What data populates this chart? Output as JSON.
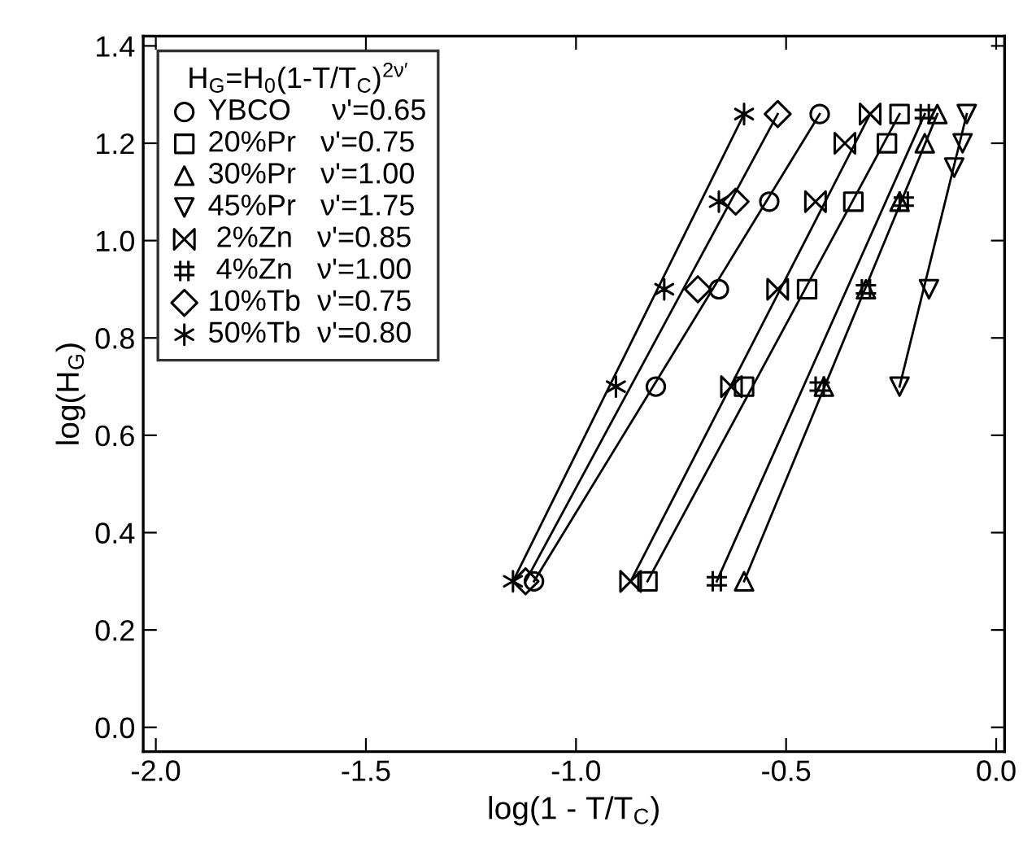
{
  "chart_data": {
    "type": "scatter",
    "xlabel": "log(1 - T/T$_{C}$)",
    "ylabel": "log(H$_{G}$)",
    "legend_title": "H$_{G}$=H$_{0}$(1-T/T$_{C}$)$^{2ν′}$",
    "xlim": [
      -2.03,
      0.02
    ],
    "ylim": [
      -0.05,
      1.42
    ],
    "xticks": [
      {
        "value": -2.0,
        "label": "-2.0"
      },
      {
        "value": -1.5,
        "label": "-1.5"
      },
      {
        "value": -1.0,
        "label": "-1.0"
      },
      {
        "value": -0.5,
        "label": "-0.5"
      },
      {
        "value": 0.0,
        "label": "0.0"
      }
    ],
    "yticks": [
      {
        "value": 0.0,
        "label": "0.0"
      },
      {
        "value": 0.2,
        "label": "0.2"
      },
      {
        "value": 0.4,
        "label": "0.4"
      },
      {
        "value": 0.6,
        "label": "0.6"
      },
      {
        "value": 0.8,
        "label": "0.8"
      },
      {
        "value": 1.0,
        "label": "1.0"
      },
      {
        "value": 1.2,
        "label": "1.2"
      },
      {
        "value": 1.4,
        "label": "1.4"
      }
    ],
    "grid": false,
    "legend": "top left",
    "series": [
      {
        "name": "YBCO     ν'=0.65",
        "color": "#000000",
        "marker": "circle",
        "x": [
          -1.1,
          -0.81,
          -0.66,
          -0.54,
          -0.42
        ],
        "values": [
          0.3,
          0.7,
          0.9,
          1.08,
          1.26
        ]
      },
      {
        "name": "20%Pr   ν'=0.75",
        "color": "#000000",
        "marker": "square",
        "x": [
          -0.83,
          -0.6,
          -0.45,
          -0.34,
          -0.26,
          -0.23
        ],
        "values": [
          0.3,
          0.7,
          0.9,
          1.08,
          1.2,
          1.26
        ]
      },
      {
        "name": "30%Pr   ν'=1.00",
        "color": "#000000",
        "marker": "triangle",
        "x": [
          -0.6,
          -0.41,
          -0.31,
          -0.23,
          -0.17,
          -0.14
        ],
        "values": [
          0.3,
          0.7,
          0.9,
          1.08,
          1.2,
          1.26
        ]
      },
      {
        "name": "45%Pr   ν'=1.75",
        "color": "#000000",
        "marker": "triangle_down",
        "x": [
          -0.23,
          -0.16,
          -0.1,
          -0.08,
          -0.07
        ],
        "values": [
          0.7,
          0.9,
          1.15,
          1.2,
          1.26
        ]
      },
      {
        "name": " 2%Zn   ν'=0.85",
        "color": "#000000",
        "x": [
          -0.87,
          -0.63,
          -0.52,
          -0.43,
          -0.36,
          -0.3
        ],
        "values": [
          0.3,
          0.7,
          0.9,
          1.08,
          1.2,
          1.26
        ]
      },
      {
        "name": " 4%Zn   ν'=1.00",
        "color": "#000000",
        "x": [
          -0.665,
          -0.42,
          -0.31,
          -0.22,
          -0.17
        ],
        "values": [
          0.3,
          0.7,
          0.9,
          1.08,
          1.26
        ]
      },
      {
        "name": "10%Tb  ν'=0.75",
        "color": "#000000",
        "marker": "diamond",
        "x": [
          -1.12,
          -0.71,
          -0.62,
          -0.52
        ],
        "values": [
          0.3,
          0.9,
          1.08,
          1.26
        ]
      },
      {
        "name": "50%Tb  ν'=0.80",
        "color": "#000000",
        "marker": "cross",
        "x": [
          -1.15,
          -0.905,
          -0.79,
          -0.66,
          -0.6
        ],
        "values": [
          0.3,
          0.7,
          0.9,
          1.08,
          1.26
        ]
      },
      {
        "type": "line",
        "color": "#000000",
        "line_style": "solid",
        "x": [
          -1.1,
          -0.42
        ],
        "values": [
          0.3,
          1.26
        ]
      },
      {
        "type": "line",
        "color": "#000000",
        "line_style": "solid",
        "x": [
          -0.83,
          -0.23
        ],
        "values": [
          0.3,
          1.26
        ]
      },
      {
        "type": "line",
        "color": "#000000",
        "line_style": "solid",
        "x": [
          -0.6,
          -0.14
        ],
        "values": [
          0.3,
          1.26
        ]
      },
      {
        "type": "line",
        "color": "#000000",
        "line_style": "solid",
        "x": [
          -0.23,
          -0.07
        ],
        "values": [
          0.7,
          1.26
        ]
      },
      {
        "type": "line",
        "color": "#000000",
        "line_style": "solid",
        "x": [
          -0.87,
          -0.3
        ],
        "values": [
          0.3,
          1.26
        ]
      },
      {
        "type": "line",
        "color": "#000000",
        "line_style": "solid",
        "x": [
          -0.665,
          -0.17
        ],
        "values": [
          0.3,
          1.26
        ]
      },
      {
        "type": "line",
        "color": "#000000",
        "line_style": "solid",
        "x": [
          -1.12,
          -0.52
        ],
        "values": [
          0.3,
          1.26
        ]
      },
      {
        "type": "line",
        "color": "#000000",
        "line_style": "solid",
        "x": [
          -1.15,
          -0.6
        ],
        "values": [
          0.3,
          1.26
        ]
      }
    ]
  }
}
